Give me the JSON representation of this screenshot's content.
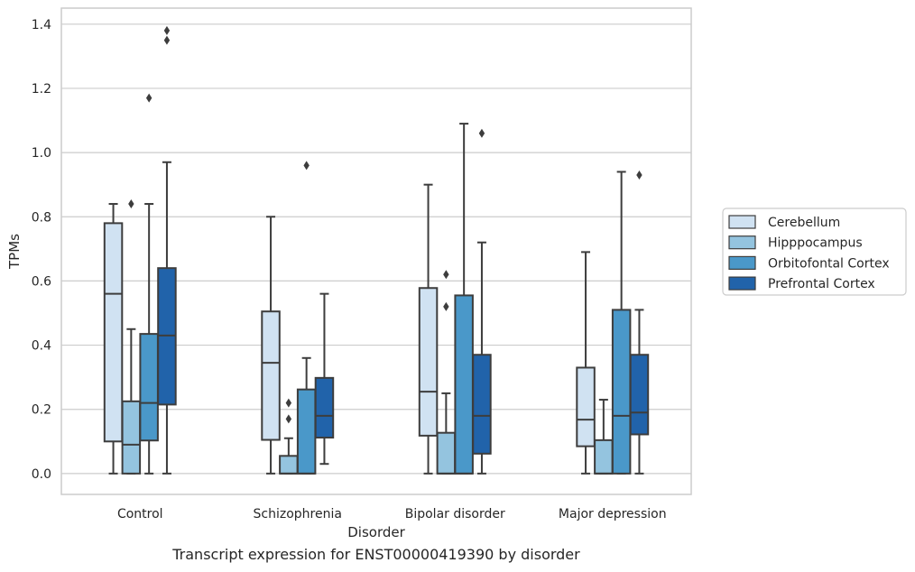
{
  "caption": "Transcript expression for ENST00000419390 by disorder",
  "chart_data": {
    "type": "box",
    "xlabel": "Disorder",
    "ylabel": "TPMs",
    "ylim": [
      -0.065,
      1.45
    ],
    "yticks": [
      0.0,
      0.2,
      0.4,
      0.6,
      0.8,
      1.0,
      1.2,
      1.4
    ],
    "ytick_labels": [
      "0.0",
      "0.2",
      "0.4",
      "0.6",
      "0.8",
      "1.0",
      "1.2",
      "1.4"
    ],
    "grid": true,
    "legend_position": "right",
    "categories": [
      "Control",
      "Schizophrenia",
      "Bipolar disorder",
      "Major depression"
    ],
    "series": [
      {
        "name": "Cerebellum",
        "color": "#d0e2f2",
        "boxes": [
          {
            "whislo": 0.0,
            "q1": 0.1,
            "med": 0.56,
            "q3": 0.78,
            "whishi": 0.84,
            "fliers": []
          },
          {
            "whislo": 0.0,
            "q1": 0.105,
            "med": 0.345,
            "q3": 0.505,
            "whishi": 0.8,
            "fliers": []
          },
          {
            "whislo": 0.0,
            "q1": 0.118,
            "med": 0.255,
            "q3": 0.578,
            "whishi": 0.9,
            "fliers": []
          },
          {
            "whislo": 0.0,
            "q1": 0.085,
            "med": 0.168,
            "q3": 0.33,
            "whishi": 0.69,
            "fliers": []
          }
        ]
      },
      {
        "name": "Hipppocampus",
        "color": "#94c4df",
        "boxes": [
          {
            "whislo": 0.0,
            "q1": 0.0,
            "med": 0.09,
            "q3": 0.225,
            "whishi": 0.45,
            "fliers": [
              0.84
            ]
          },
          {
            "whislo": 0.0,
            "q1": 0.0,
            "med": 0.0,
            "q3": 0.055,
            "whishi": 0.11,
            "fliers": [
              0.17,
              0.22
            ]
          },
          {
            "whislo": 0.0,
            "q1": 0.0,
            "med": 0.0,
            "q3": 0.127,
            "whishi": 0.25,
            "fliers": [
              0.52,
              0.62
            ]
          },
          {
            "whislo": 0.0,
            "q1": 0.0,
            "med": 0.0,
            "q3": 0.104,
            "whishi": 0.23,
            "fliers": []
          }
        ]
      },
      {
        "name": "Orbitofontal Cortex",
        "color": "#4a98c9",
        "boxes": [
          {
            "whislo": 0.0,
            "q1": 0.103,
            "med": 0.22,
            "q3": 0.435,
            "whishi": 0.84,
            "fliers": [
              1.17
            ]
          },
          {
            "whislo": 0.0,
            "q1": 0.0,
            "med": 0.0,
            "q3": 0.262,
            "whishi": 0.36,
            "fliers": [
              0.96
            ]
          },
          {
            "whislo": 0.0,
            "q1": 0.0,
            "med": 0.0,
            "q3": 0.555,
            "whishi": 1.09,
            "fliers": []
          },
          {
            "whislo": 0.0,
            "q1": 0.0,
            "med": 0.18,
            "q3": 0.51,
            "whishi": 0.94,
            "fliers": []
          }
        ]
      },
      {
        "name": "Prefrontal Cortex",
        "color": "#2163aa",
        "boxes": [
          {
            "whislo": 0.0,
            "q1": 0.215,
            "med": 0.43,
            "q3": 0.64,
            "whishi": 0.97,
            "fliers": [
              1.35,
              1.38
            ]
          },
          {
            "whislo": 0.03,
            "q1": 0.112,
            "med": 0.18,
            "q3": 0.298,
            "whishi": 0.56,
            "fliers": []
          },
          {
            "whislo": 0.0,
            "q1": 0.062,
            "med": 0.18,
            "q3": 0.37,
            "whishi": 0.72,
            "fliers": [
              1.06
            ]
          },
          {
            "whislo": 0.0,
            "q1": 0.122,
            "med": 0.19,
            "q3": 0.37,
            "whishi": 0.51,
            "fliers": [
              0.93
            ]
          }
        ]
      }
    ]
  }
}
